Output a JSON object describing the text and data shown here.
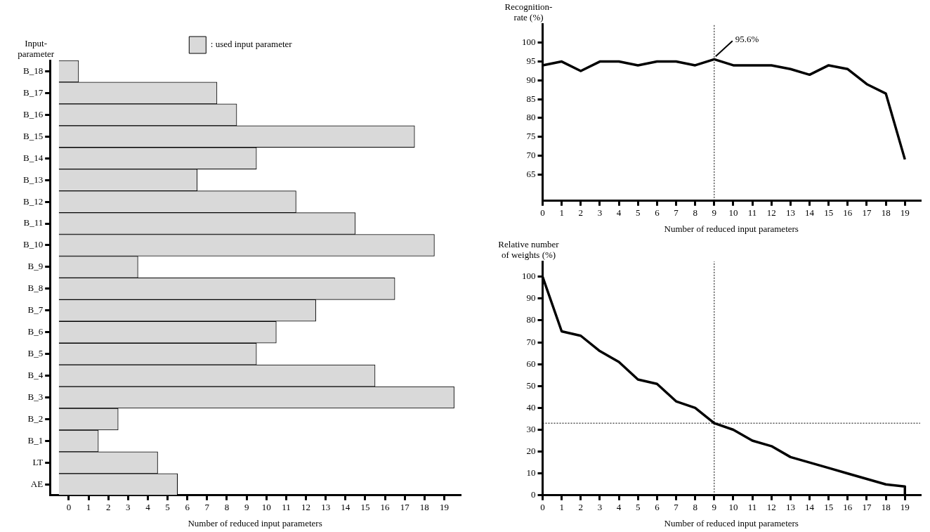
{
  "chart_data": [
    {
      "type": "bar",
      "orientation": "horizontal",
      "xlabel": "Number of reduced input parameters",
      "ylabel": "Input-parameter",
      "legend": "top",
      "categories": [
        "B_18",
        "B_17",
        "B_16",
        "B_15",
        "B_14",
        "B_13",
        "B_12",
        "B_11",
        "B_10",
        "B_9",
        "B_8",
        "B_7",
        "B_6",
        "B_5",
        "B_4",
        "B_3",
        "B_2",
        "B_1",
        "LT",
        "AE"
      ],
      "series": [
        {
          "name": ": used input parameter",
          "color": "#d9d9d9",
          "values": [
            1,
            8,
            9,
            18,
            10,
            7,
            12,
            15,
            19,
            4,
            17,
            13,
            11,
            10,
            16,
            20,
            3,
            2,
            5,
            6
          ]
        }
      ],
      "xlim": [
        -0.45,
        20.3
      ],
      "xticks": [
        {
          "value": 0.5,
          "label": "0"
        },
        {
          "value": 1.5,
          "label": "1"
        },
        {
          "value": 2.5,
          "label": "2"
        },
        {
          "value": 3.5,
          "label": "3"
        },
        {
          "value": 4.5,
          "label": "4"
        },
        {
          "value": 5.5,
          "label": "5"
        },
        {
          "value": 6.5,
          "label": "6"
        },
        {
          "value": 7.5,
          "label": "7"
        },
        {
          "value": 8.5,
          "label": "8"
        },
        {
          "value": 9.5,
          "label": "9"
        },
        {
          "value": 10.5,
          "label": "10"
        },
        {
          "value": 11.5,
          "label": "11"
        },
        {
          "value": 12.5,
          "label": "12"
        },
        {
          "value": 13.5,
          "label": "13"
        },
        {
          "value": 14.5,
          "label": "14"
        },
        {
          "value": 15.5,
          "label": "15"
        },
        {
          "value": 16.5,
          "label": "16"
        },
        {
          "value": 17.5,
          "label": "17"
        },
        {
          "value": 18.5,
          "label": "18"
        },
        {
          "value": 19.5,
          "label": "19"
        }
      ]
    },
    {
      "type": "line",
      "xlabel": "Number of reduced input parameters",
      "ylabel": "Recognition-rate (%)",
      "marker": "none",
      "color": "#000000",
      "x": [
        0,
        1,
        2,
        3,
        4,
        5,
        6,
        7,
        8,
        9,
        10,
        11,
        12,
        13,
        14,
        15,
        16,
        17,
        18,
        19
      ],
      "values": [
        94,
        95,
        92.5,
        95,
        95,
        94,
        95,
        95,
        94,
        95.6,
        94,
        94,
        94,
        93,
        91.5,
        94,
        93,
        89,
        86.5,
        69
      ],
      "xlim": [
        0,
        19.8
      ],
      "xticks": [
        0,
        1,
        2,
        3,
        4,
        5,
        6,
        7,
        8,
        9,
        10,
        11,
        12,
        13,
        14,
        15,
        16,
        17,
        18,
        19
      ],
      "ylim": [
        58,
        105
      ],
      "yticks": [
        65,
        70,
        75,
        80,
        85,
        90,
        95,
        100
      ],
      "ref_lines": [
        {
          "axis": "x",
          "value": 9,
          "line_style": "dotted"
        }
      ],
      "annotations": [
        {
          "text": "95.6%",
          "x": 9,
          "y": 95.6
        }
      ]
    },
    {
      "type": "line",
      "xlabel": "Number of reduced input parameters",
      "ylabel": "Relative number of weights (%)",
      "marker": "none",
      "color": "#000000",
      "x": [
        0,
        1,
        2,
        3,
        4,
        5,
        6,
        7,
        8,
        9,
        10,
        11,
        12,
        13,
        14,
        15,
        16,
        17,
        18,
        19,
        19
      ],
      "values": [
        100,
        75,
        73,
        66,
        61,
        53,
        51,
        43,
        40,
        33,
        30,
        25,
        22.5,
        17.5,
        15,
        12.5,
        10,
        7.5,
        5,
        4,
        0
      ],
      "xlim": [
        0,
        19.8
      ],
      "xticks": [
        0,
        1,
        2,
        3,
        4,
        5,
        6,
        7,
        8,
        9,
        10,
        11,
        12,
        13,
        14,
        15,
        16,
        17,
        18,
        19
      ],
      "ylim": [
        0,
        107
      ],
      "yticks": [
        0,
        10,
        20,
        30,
        40,
        50,
        60,
        70,
        80,
        90,
        100
      ],
      "ref_lines": [
        {
          "axis": "x",
          "value": 9,
          "line_style": "dotted"
        },
        {
          "axis": "y",
          "value": 33,
          "line_style": "dotted"
        }
      ]
    }
  ]
}
